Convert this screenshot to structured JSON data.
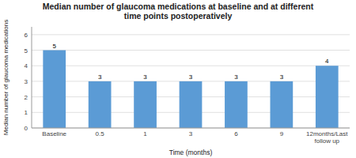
{
  "chart_data": {
    "type": "bar",
    "title": "Median number of glaucoma medications at baseline and at different\ntime points postoperatively",
    "xlabel": "Time (months)",
    "ylabel": "Median number of glaucoma medications",
    "categories": [
      "Baseline",
      "0.5",
      "1",
      "3",
      "6",
      "9",
      "12months/Last\nfollow up"
    ],
    "values": [
      5,
      3,
      3,
      3,
      3,
      3,
      4
    ],
    "color": "#5b9bd5",
    "ylim": [
      0,
      6.5
    ],
    "yticks": [
      0,
      1,
      2,
      3,
      4,
      5,
      6
    ],
    "grid": true,
    "data_labels": true
  }
}
